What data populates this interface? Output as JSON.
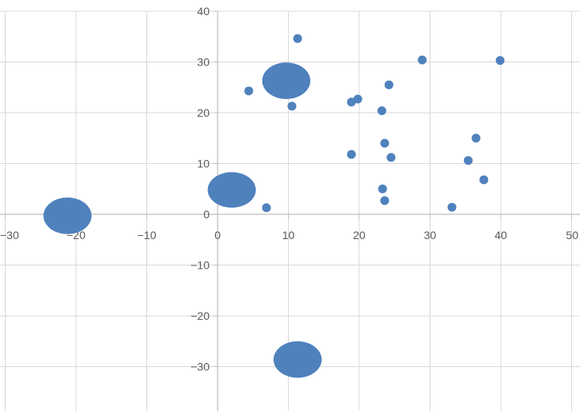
{
  "chart_data": {
    "type": "scatter",
    "title": "",
    "xlabel": "",
    "ylabel": "",
    "xlim": [
      -30,
      50
    ],
    "ylim": [
      -38,
      40
    ],
    "grid": true,
    "marker_color": "#4F81BD",
    "gridline_color": "#D9D9D9",
    "axis_color": "#BFBFBF",
    "x_ticks": [
      -30,
      -20,
      -10,
      0,
      10,
      20,
      30,
      40,
      50
    ],
    "y_ticks": [
      -30,
      -20,
      -10,
      0,
      10,
      20,
      30,
      40
    ],
    "x_tick_labels": [
      "−30",
      "−20",
      "−10",
      "0",
      "10",
      "20",
      "30",
      "40",
      "50"
    ],
    "y_tick_labels": [
      "−30",
      "−20",
      "−10",
      "0",
      "10",
      "20",
      "30",
      "40"
    ],
    "series": [
      {
        "points": [
          [
            11.3,
            34.6
          ],
          [
            28.9,
            30.4
          ],
          [
            39.9,
            30.3
          ],
          [
            24.2,
            25.5
          ],
          [
            4.4,
            24.3
          ],
          [
            19.8,
            22.7
          ],
          [
            18.9,
            22.1
          ],
          [
            10.5,
            21.3
          ],
          [
            23.2,
            20.4
          ],
          [
            23.6,
            14.0
          ],
          [
            36.5,
            15.0
          ],
          [
            18.9,
            11.8
          ],
          [
            24.5,
            11.2
          ],
          [
            35.4,
            10.6
          ],
          [
            37.6,
            6.8
          ],
          [
            23.3,
            5.0
          ],
          [
            23.6,
            2.7
          ],
          [
            6.9,
            1.3
          ],
          [
            33.1,
            1.4
          ]
        ]
      }
    ],
    "dense_clusters": [
      {
        "center": [
          9.7,
          26.3
        ],
        "rx": 3.4,
        "ry": 3.6
      },
      {
        "center": [
          2.0,
          4.8
        ],
        "rx": 3.4,
        "ry": 3.5
      },
      {
        "center": [
          -21.2,
          -0.3
        ],
        "rx": 3.4,
        "ry": 3.6
      },
      {
        "center": [
          11.3,
          -28.6
        ],
        "rx": 3.4,
        "ry": 3.6
      }
    ]
  }
}
